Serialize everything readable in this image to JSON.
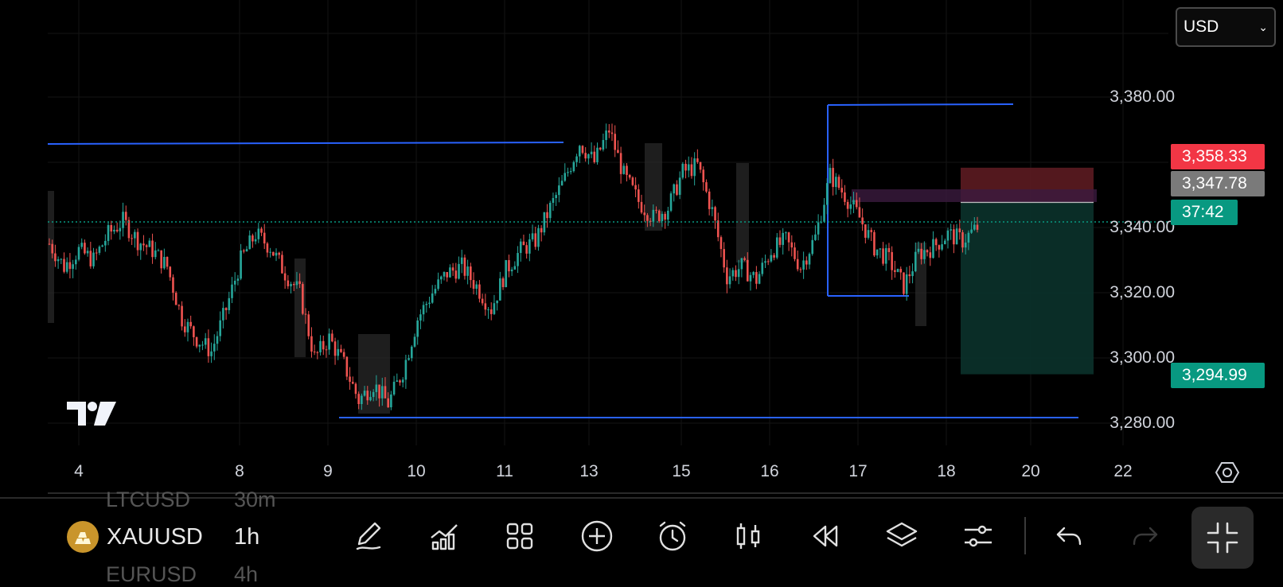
{
  "currency": {
    "value": "USD"
  },
  "price_scale": [
    "3,380.00",
    "3,340.00",
    "3,320.00",
    "3,300.00",
    "3,280.00"
  ],
  "tags": {
    "stop": {
      "value": "3,358.33",
      "color": "#f23645"
    },
    "entry": {
      "value": "3,347.78",
      "color": "#7a7a7a"
    },
    "countdown": {
      "value": "37:42",
      "color": "#089981"
    },
    "target": {
      "value": "3,294.99",
      "color": "#089981"
    }
  },
  "date_axis": [
    "4",
    "8",
    "9",
    "10",
    "11",
    "13",
    "15",
    "16",
    "17",
    "18",
    "20",
    "22"
  ],
  "toolbar": {
    "symbol": "XAUUSD",
    "timeframe": "1h",
    "ghost_prev_symbol": "LTCUSD",
    "ghost_prev_tf": "30m",
    "ghost_next_symbol": "EURUSD",
    "ghost_next_tf": "4h",
    "icons": [
      "pen-icon",
      "indicators-icon",
      "grid-icon",
      "plus-circle-icon",
      "alarm-icon",
      "candles-icon",
      "replay-icon",
      "layers-icon",
      "settings-sliders-icon",
      "undo-icon",
      "redo-icon",
      "collapse-icon"
    ]
  },
  "colors": {
    "up": "#26a69a",
    "down": "#ef5350",
    "level_line": "#2962ff",
    "current_price_line": "#089981",
    "stop_zone": "#5c1b21",
    "target_zone": "#0b2f29"
  },
  "chart_data": {
    "type": "candlestick",
    "symbol": "XAUUSD",
    "timeframe": "1h",
    "y_range": [
      3275,
      3392
    ],
    "current_price": 3341.7,
    "horizontal_levels": [
      3367.5,
      3378.0,
      3319.0,
      3282.0
    ],
    "position_tool": {
      "stop": 3358.33,
      "entry": 3347.78,
      "target": 3294.99
    },
    "close_path": [
      3335,
      3328,
      3333,
      3330,
      3338,
      3342,
      3336,
      3333,
      3328,
      3312,
      3306,
      3302,
      3315,
      3330,
      3338,
      3334,
      3326,
      3320,
      3300,
      3306,
      3298,
      3287,
      3292,
      3286,
      3296,
      3312,
      3320,
      3326,
      3328,
      3322,
      3315,
      3327,
      3333,
      3336,
      3346,
      3355,
      3366,
      3360,
      3370,
      3356,
      3348,
      3343,
      3346,
      3357,
      3359,
      3345,
      3325,
      3328,
      3324,
      3333,
      3336,
      3328,
      3337,
      3356,
      3350,
      3343,
      3334,
      3330,
      3322,
      3332,
      3334,
      3338,
      3336,
      3340
    ]
  }
}
